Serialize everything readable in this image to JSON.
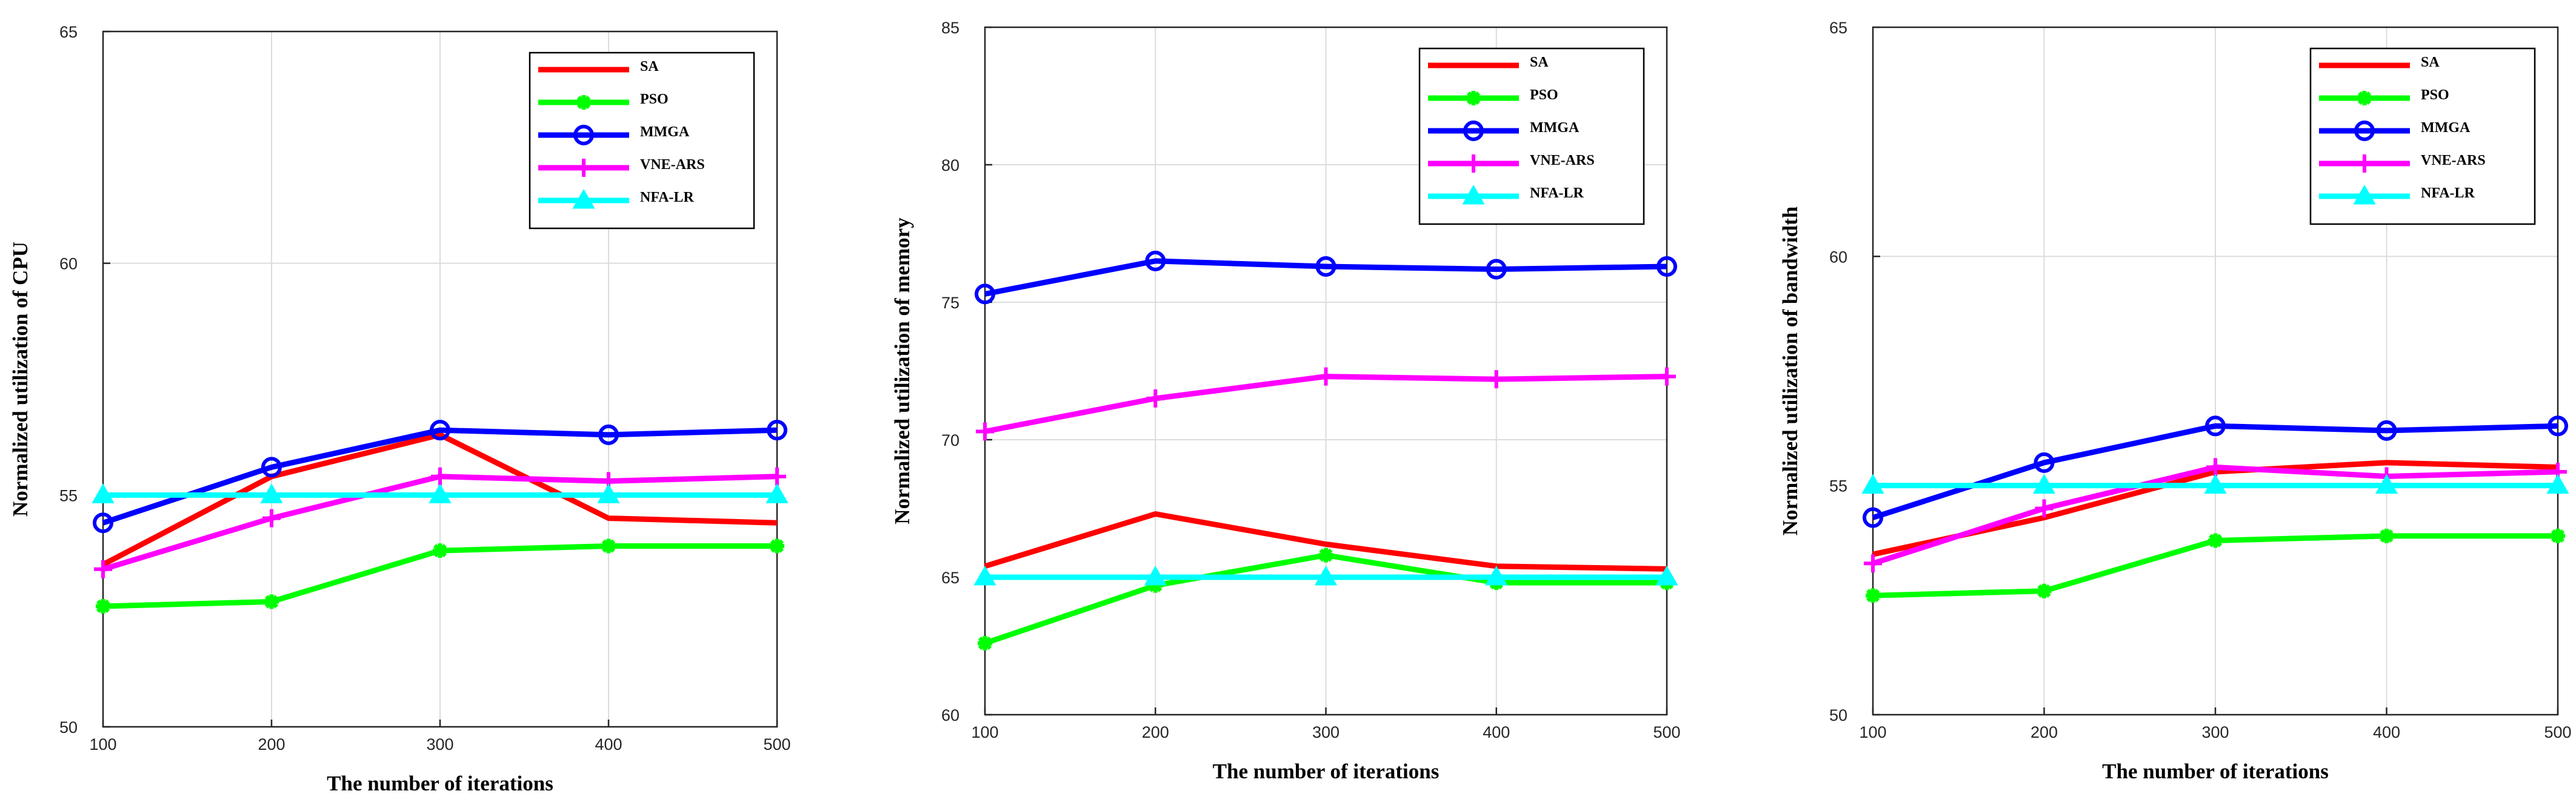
{
  "chart_data": [
    {
      "type": "line",
      "title": "",
      "xlabel": "The number of iterations",
      "ylabel": "Normalized utilization of CPU",
      "x": [
        100,
        200,
        300,
        400,
        500
      ],
      "xticks": [
        "100",
        "200",
        "300",
        "400",
        "500"
      ],
      "xlim": [
        100,
        500
      ],
      "ylim": [
        50,
        65
      ],
      "yticks": [
        "50",
        "55",
        "60",
        "65"
      ],
      "grid": true,
      "legend_position": "top-right",
      "series": [
        {
          "name": "SA",
          "color": "#ff0000",
          "marker": "none",
          "values": [
            53.5,
            55.4,
            56.3,
            54.5,
            54.4
          ]
        },
        {
          "name": "PSO",
          "color": "#00ff00",
          "marker": "star",
          "values": [
            52.6,
            52.7,
            53.8,
            53.9,
            53.9
          ]
        },
        {
          "name": "MMGA",
          "color": "#0000ff",
          "marker": "circle",
          "values": [
            54.4,
            55.6,
            56.4,
            56.3,
            56.4
          ]
        },
        {
          "name": "VNE-ARS",
          "color": "#ff00ff",
          "marker": "plus",
          "values": [
            53.4,
            54.5,
            55.4,
            55.3,
            55.4
          ]
        },
        {
          "name": "NFA-LR",
          "color": "#00ffff",
          "marker": "triangle",
          "values": [
            55.0,
            55.0,
            55.0,
            55.0,
            55.0
          ]
        }
      ]
    },
    {
      "type": "line",
      "title": "",
      "xlabel": "The number of iterations",
      "ylabel": "Normalized utilization of memory",
      "x": [
        100,
        200,
        300,
        400,
        500
      ],
      "xticks": [
        "100",
        "200",
        "300",
        "400",
        "500"
      ],
      "xlim": [
        100,
        500
      ],
      "ylim": [
        60,
        85
      ],
      "yticks": [
        "60",
        "65",
        "70",
        "75",
        "80",
        "85"
      ],
      "grid": true,
      "legend_position": "top-right",
      "series": [
        {
          "name": "SA",
          "color": "#ff0000",
          "marker": "none",
          "values": [
            65.4,
            67.3,
            66.2,
            65.4,
            65.3
          ]
        },
        {
          "name": "PSO",
          "color": "#00ff00",
          "marker": "star",
          "values": [
            62.6,
            64.7,
            65.8,
            64.8,
            64.8
          ]
        },
        {
          "name": "MMGA",
          "color": "#0000ff",
          "marker": "circle",
          "values": [
            75.3,
            76.5,
            76.3,
            76.2,
            76.3
          ]
        },
        {
          "name": "VNE-ARS",
          "color": "#ff00ff",
          "marker": "plus",
          "values": [
            70.3,
            71.5,
            72.3,
            72.2,
            72.3
          ]
        },
        {
          "name": "NFA-LR",
          "color": "#00ffff",
          "marker": "triangle",
          "values": [
            65.0,
            65.0,
            65.0,
            65.0,
            65.0
          ]
        }
      ]
    },
    {
      "type": "line",
      "title": "",
      "xlabel": "The number of iterations",
      "ylabel": "Normalized utilization of bandwidth",
      "x": [
        100,
        200,
        300,
        400,
        500
      ],
      "xticks": [
        "100",
        "200",
        "300",
        "400",
        "500"
      ],
      "xlim": [
        100,
        500
      ],
      "ylim": [
        50,
        65
      ],
      "yticks": [
        "50",
        "55",
        "60",
        "65"
      ],
      "grid": true,
      "legend_position": "top-right",
      "series": [
        {
          "name": "SA",
          "color": "#ff0000",
          "marker": "none",
          "values": [
            53.5,
            54.3,
            55.3,
            55.5,
            55.4
          ]
        },
        {
          "name": "PSO",
          "color": "#00ff00",
          "marker": "star",
          "values": [
            52.6,
            52.7,
            53.8,
            53.9,
            53.9
          ]
        },
        {
          "name": "MMGA",
          "color": "#0000ff",
          "marker": "circle",
          "values": [
            54.3,
            55.5,
            56.3,
            56.2,
            56.3
          ]
        },
        {
          "name": "VNE-ARS",
          "color": "#ff00ff",
          "marker": "plus",
          "values": [
            53.3,
            54.5,
            55.4,
            55.2,
            55.3
          ]
        },
        {
          "name": "NFA-LR",
          "color": "#00ffff",
          "marker": "triangle",
          "values": [
            55.0,
            55.0,
            55.0,
            55.0,
            55.0
          ]
        }
      ]
    }
  ]
}
